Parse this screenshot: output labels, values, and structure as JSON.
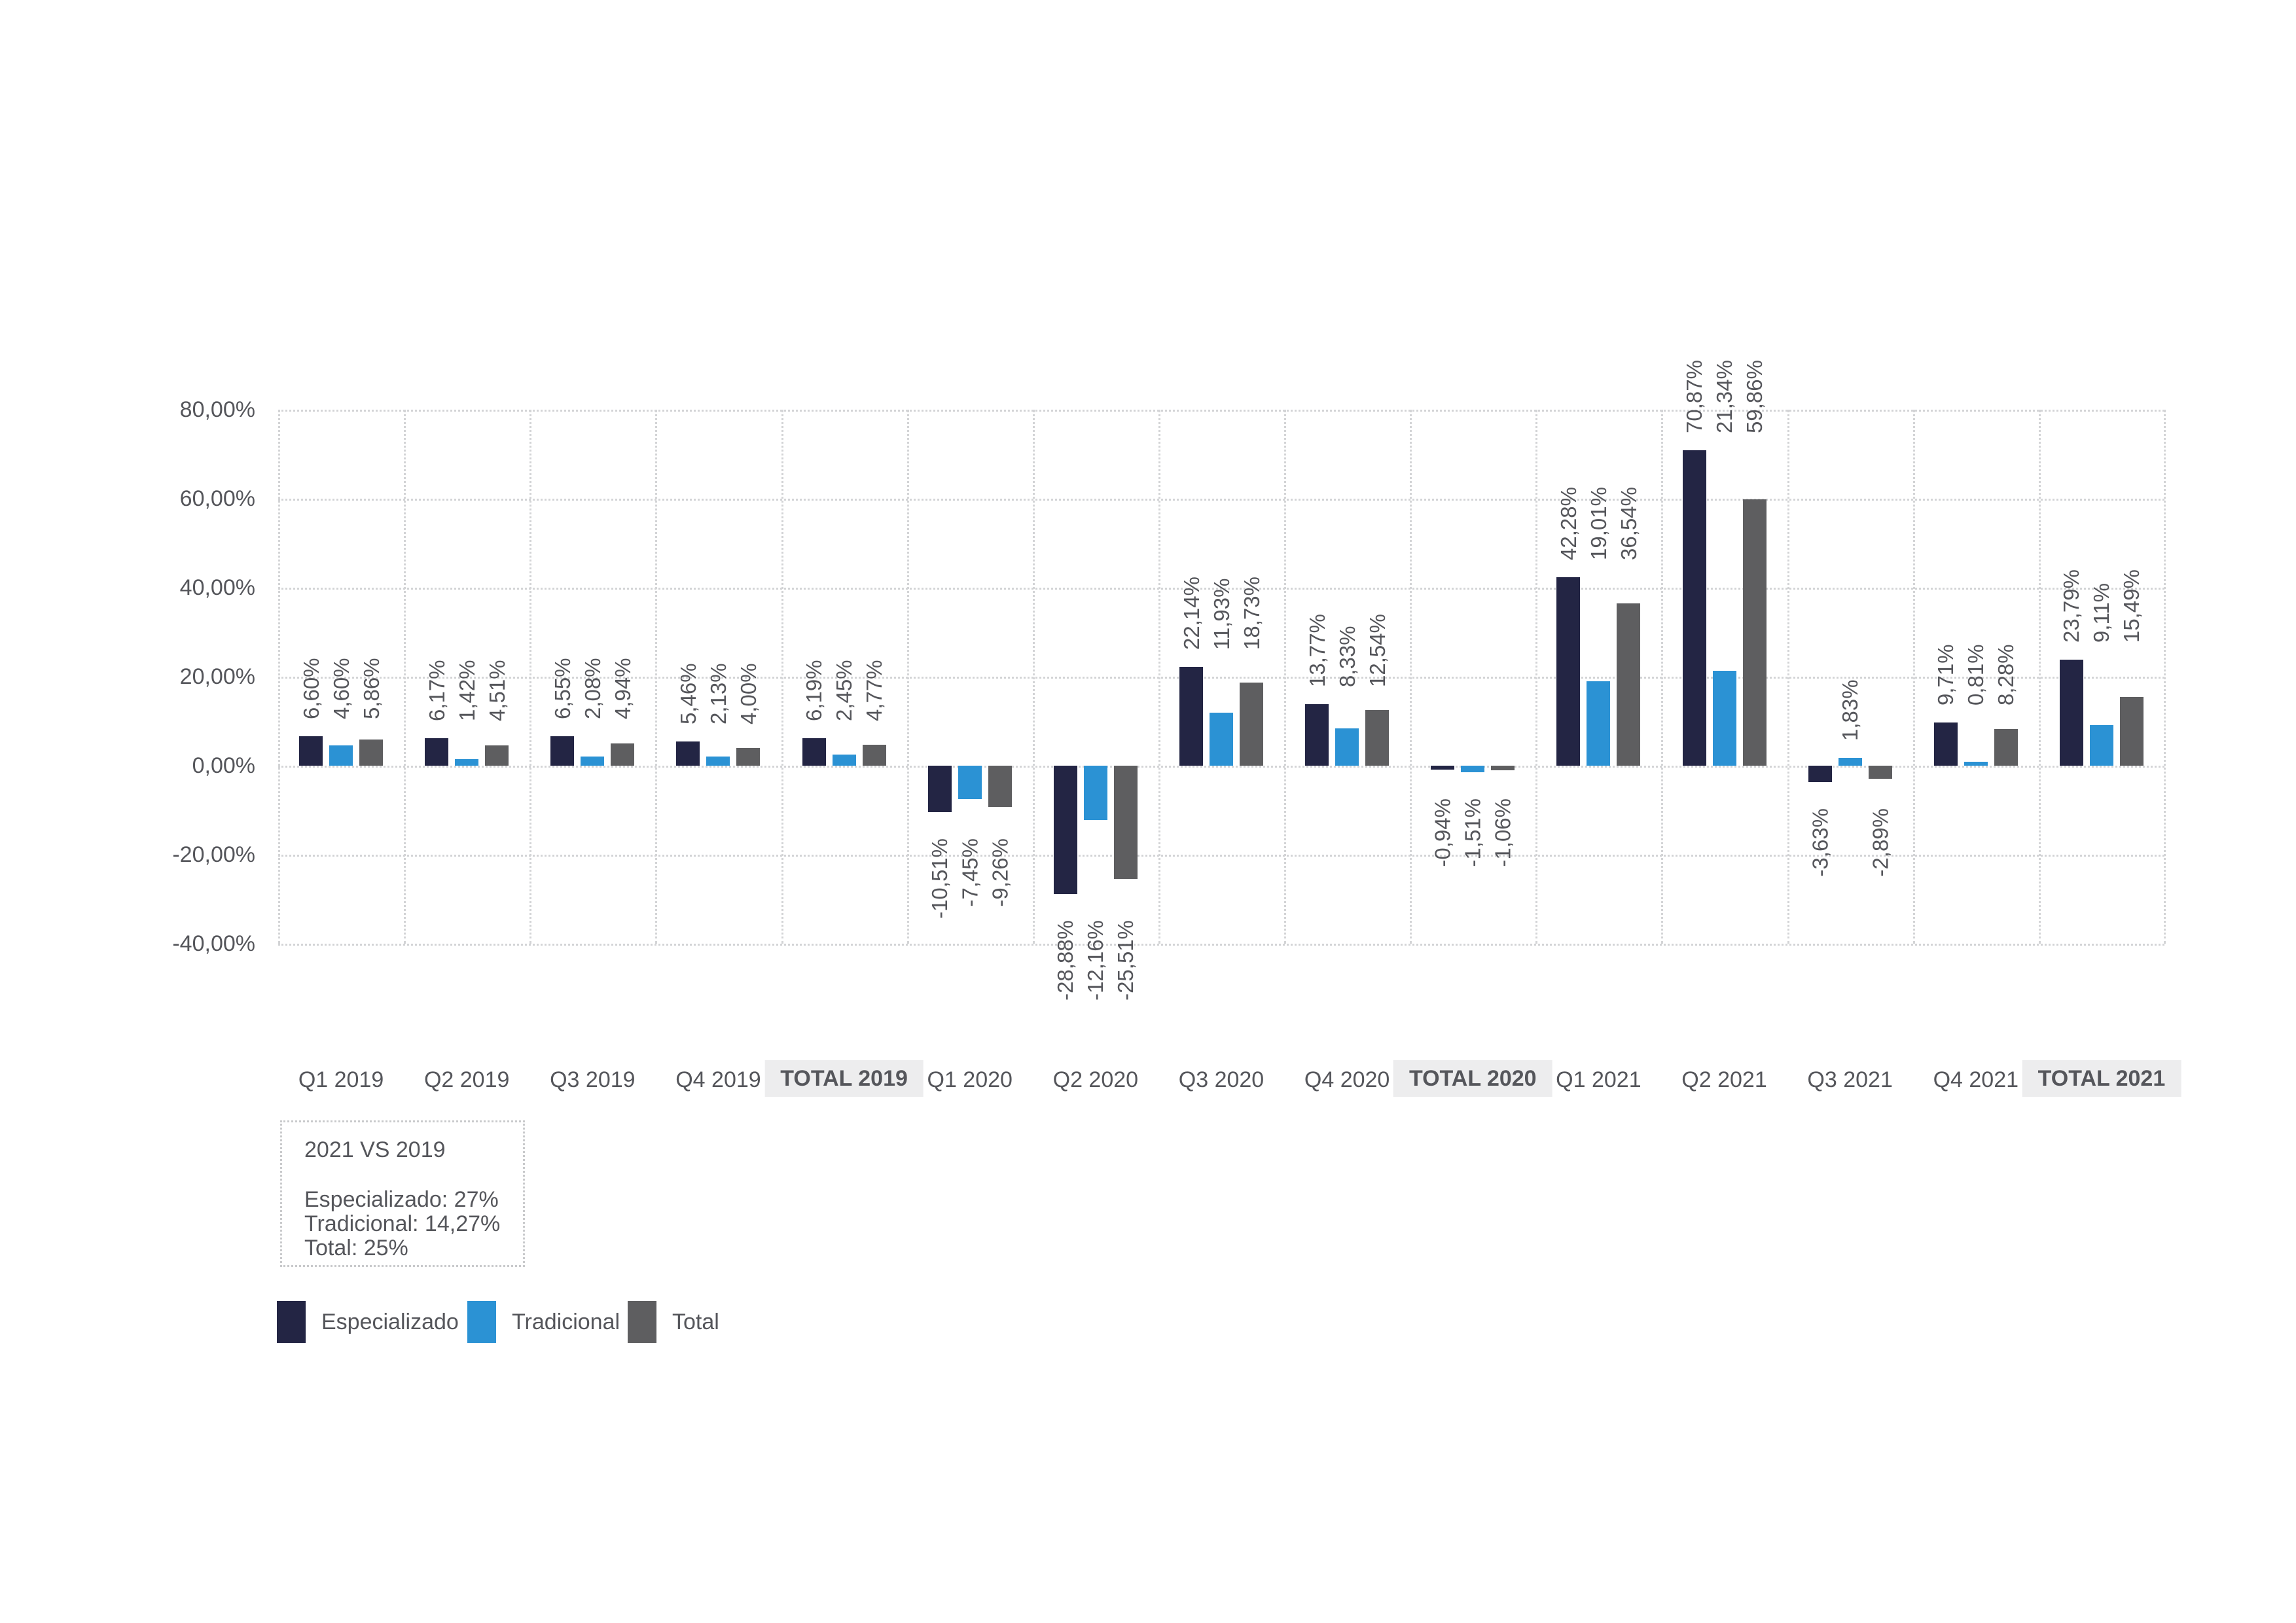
{
  "background": "#ffffff",
  "chart_data": {
    "type": "bar",
    "title": "",
    "categories": [
      "Q1 2019",
      "Q2 2019",
      "Q3 2019",
      "Q4 2019",
      "TOTAL 2019",
      "Q1 2020",
      "Q2 2020",
      "Q3 2020",
      "Q4 2020",
      "TOTAL 2020",
      "Q1 2021",
      "Q2 2021",
      "Q3 2021",
      "Q4 2021",
      "TOTAL 2021"
    ],
    "series": [
      {
        "name": "Especializado",
        "color": "#232544",
        "values": [
          6.6,
          6.17,
          6.55,
          5.46,
          6.19,
          -10.51,
          -28.88,
          22.14,
          13.77,
          -0.94,
          42.28,
          70.87,
          -3.63,
          9.71,
          23.79
        ],
        "labels": [
          "6,60%",
          "6,17%",
          "6,55%",
          "5,46%",
          "6,19%",
          "-10,51%",
          "-28,88%",
          "22,14%",
          "13,77%",
          "-0,94%",
          "42,28%",
          "70,87%",
          "-3,63%",
          "9,71%",
          "23,79%"
        ]
      },
      {
        "name": "Tradicional",
        "color": "#2b92d4",
        "values": [
          4.6,
          1.42,
          2.08,
          2.13,
          2.45,
          -7.45,
          -12.16,
          11.93,
          8.33,
          -1.51,
          19.01,
          21.34,
          1.83,
          0.81,
          9.11
        ],
        "labels": [
          "4,60%",
          "1,42%",
          "2,08%",
          "2,13%",
          "2,45%",
          "-7,45%",
          "-12,16%",
          "11,93%",
          "8,33%",
          "-1,51%",
          "19,01%",
          "21,34%",
          "1,83%",
          "0,81%",
          "9,11%"
        ]
      },
      {
        "name": "Total",
        "color": "#5e5e60",
        "values": [
          5.86,
          4.51,
          4.94,
          4.0,
          4.77,
          -9.26,
          -25.51,
          18.73,
          12.54,
          -1.06,
          36.54,
          59.86,
          -2.89,
          8.28,
          15.49
        ],
        "labels": [
          "5,86%",
          "4,51%",
          "4,94%",
          "4,00%",
          "4,77%",
          "-9,26%",
          "-25,51%",
          "18,73%",
          "12,54%",
          "-1,06%",
          "36,54%",
          "59,86%",
          "-2,89%",
          "8,28%",
          "15,49%"
        ]
      }
    ],
    "y_axis": {
      "ticks": [
        "80,00%",
        "60,00%",
        "40,00%",
        "20,00%",
        "0,00%",
        "-20,00%",
        "-40,00%"
      ],
      "tick_values": [
        80,
        60,
        40,
        20,
        0,
        -20,
        -40
      ],
      "min": -40,
      "max": 80,
      "grid": "dotted"
    },
    "value_label_rotation": -90,
    "legend_position": "bottom-left"
  },
  "note_box": {
    "title": "2021 VS 2019",
    "lines": [
      "Especializado: 27%",
      "Tradicional: 14,27%",
      "Total: 25%"
    ]
  },
  "legend": {
    "items": [
      {
        "label": "Especializado",
        "color": "#232544"
      },
      {
        "label": "Tradicional",
        "color": "#2b92d4"
      },
      {
        "label": "Total",
        "color": "#5e5e60"
      }
    ]
  }
}
